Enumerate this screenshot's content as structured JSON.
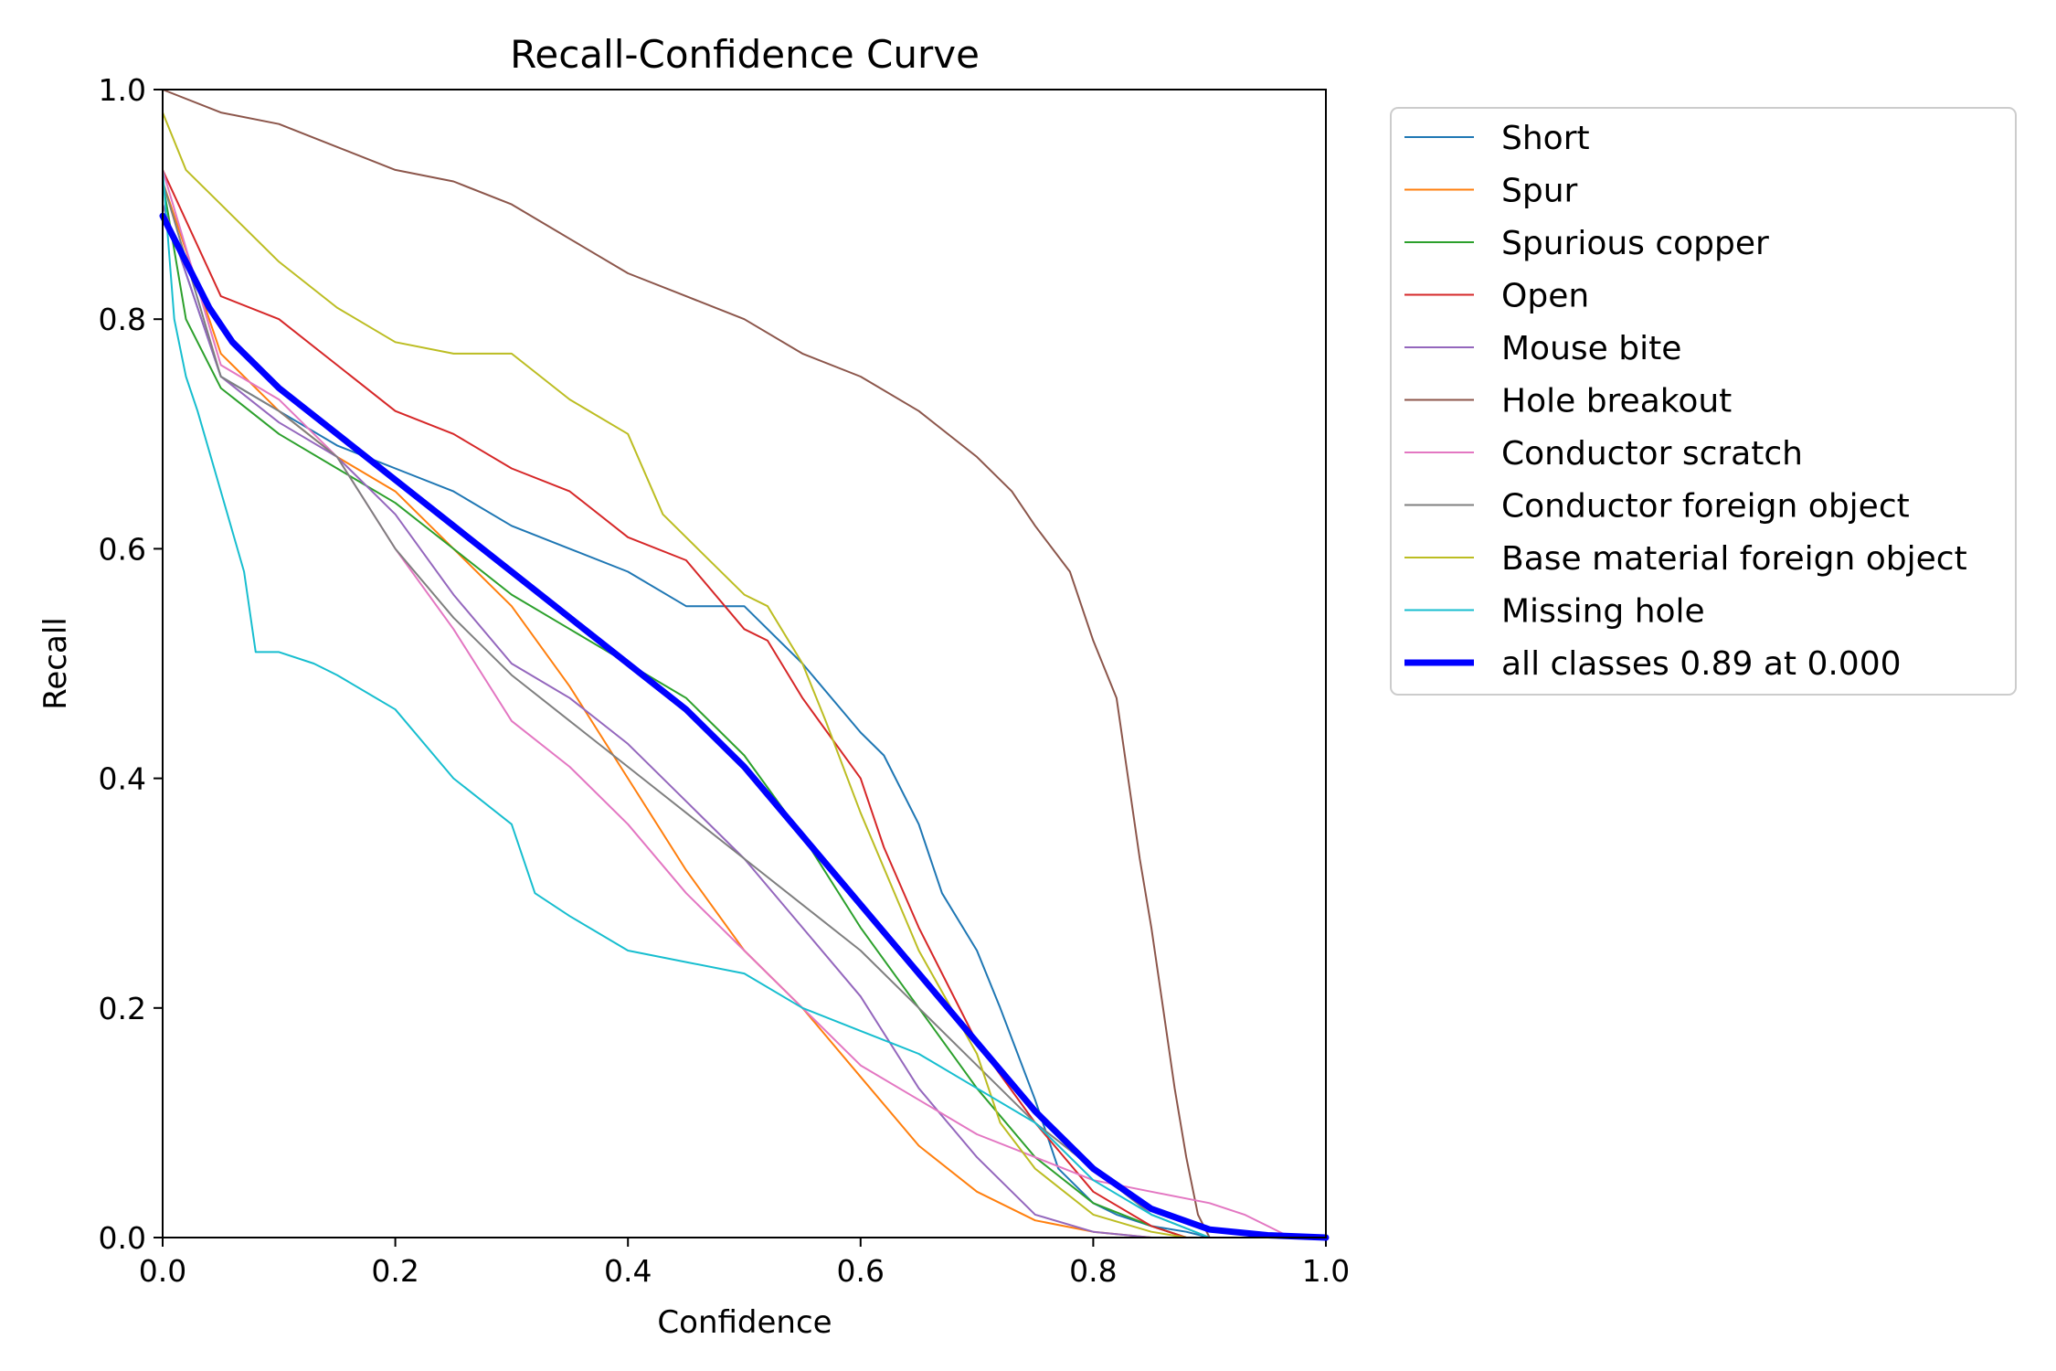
{
  "chart_data": {
    "type": "line",
    "title": "Recall-Confidence Curve",
    "xlabel": "Confidence",
    "ylabel": "Recall",
    "xlim": [
      0,
      1
    ],
    "ylim": [
      0,
      1
    ],
    "xticks": [
      "0.0",
      "0.2",
      "0.4",
      "0.6",
      "0.8",
      "1.0"
    ],
    "yticks": [
      "0.0",
      "0.2",
      "0.4",
      "0.6",
      "0.8",
      "1.0"
    ],
    "grid": false,
    "legend_position": "outside-top-right",
    "series": [
      {
        "name": "Short",
        "color": "#1f77b4",
        "width": 2,
        "x": [
          0,
          0.05,
          0.1,
          0.15,
          0.2,
          0.25,
          0.3,
          0.35,
          0.4,
          0.45,
          0.5,
          0.55,
          0.6,
          0.62,
          0.65,
          0.67,
          0.7,
          0.72,
          0.75,
          0.77,
          0.8,
          0.82,
          0.85,
          0.88,
          0.9
        ],
        "y": [
          0.9,
          0.75,
          0.72,
          0.69,
          0.67,
          0.65,
          0.62,
          0.6,
          0.58,
          0.55,
          0.55,
          0.5,
          0.44,
          0.42,
          0.36,
          0.3,
          0.25,
          0.2,
          0.12,
          0.06,
          0.03,
          0.02,
          0.01,
          0.005,
          0
        ]
      },
      {
        "name": "Spur",
        "color": "#ff7f0e",
        "width": 2,
        "x": [
          0,
          0.05,
          0.1,
          0.15,
          0.2,
          0.25,
          0.3,
          0.35,
          0.4,
          0.45,
          0.5,
          0.55,
          0.6,
          0.65,
          0.7,
          0.75,
          0.8,
          0.85
        ],
        "y": [
          0.92,
          0.77,
          0.72,
          0.68,
          0.65,
          0.6,
          0.55,
          0.48,
          0.4,
          0.32,
          0.25,
          0.2,
          0.14,
          0.08,
          0.04,
          0.015,
          0.005,
          0
        ]
      },
      {
        "name": "Spurious copper",
        "color": "#2ca02c",
        "width": 2,
        "x": [
          0,
          0.02,
          0.05,
          0.1,
          0.15,
          0.2,
          0.25,
          0.3,
          0.35,
          0.4,
          0.45,
          0.5,
          0.55,
          0.6,
          0.65,
          0.7,
          0.75,
          0.8,
          0.85,
          0.88
        ],
        "y": [
          0.92,
          0.8,
          0.74,
          0.7,
          0.67,
          0.64,
          0.6,
          0.56,
          0.53,
          0.5,
          0.47,
          0.42,
          0.35,
          0.27,
          0.2,
          0.13,
          0.07,
          0.03,
          0.01,
          0
        ]
      },
      {
        "name": "Open",
        "color": "#d62728",
        "width": 2,
        "x": [
          0,
          0.05,
          0.1,
          0.15,
          0.2,
          0.25,
          0.3,
          0.35,
          0.4,
          0.45,
          0.5,
          0.52,
          0.55,
          0.6,
          0.62,
          0.65,
          0.7,
          0.75,
          0.8,
          0.85,
          0.88
        ],
        "y": [
          0.93,
          0.82,
          0.8,
          0.76,
          0.72,
          0.7,
          0.67,
          0.65,
          0.61,
          0.59,
          0.53,
          0.52,
          0.47,
          0.4,
          0.34,
          0.27,
          0.17,
          0.1,
          0.04,
          0.01,
          0
        ]
      },
      {
        "name": "Mouse bite",
        "color": "#9467bd",
        "width": 2,
        "x": [
          0,
          0.05,
          0.1,
          0.15,
          0.2,
          0.25,
          0.3,
          0.35,
          0.4,
          0.45,
          0.5,
          0.55,
          0.6,
          0.65,
          0.7,
          0.75,
          0.8,
          0.85
        ],
        "y": [
          0.9,
          0.75,
          0.71,
          0.68,
          0.63,
          0.56,
          0.5,
          0.47,
          0.43,
          0.38,
          0.33,
          0.27,
          0.21,
          0.13,
          0.07,
          0.02,
          0.005,
          0
        ]
      },
      {
        "name": "Hole breakout",
        "color": "#8c564b",
        "width": 2,
        "x": [
          0,
          0.05,
          0.1,
          0.15,
          0.2,
          0.25,
          0.3,
          0.35,
          0.4,
          0.45,
          0.5,
          0.55,
          0.6,
          0.65,
          0.7,
          0.73,
          0.75,
          0.78,
          0.8,
          0.82,
          0.83,
          0.84,
          0.85,
          0.86,
          0.87,
          0.88,
          0.89,
          0.9
        ],
        "y": [
          1.0,
          0.98,
          0.97,
          0.95,
          0.93,
          0.92,
          0.9,
          0.87,
          0.84,
          0.82,
          0.8,
          0.77,
          0.75,
          0.72,
          0.68,
          0.65,
          0.62,
          0.58,
          0.52,
          0.47,
          0.4,
          0.33,
          0.27,
          0.2,
          0.13,
          0.07,
          0.02,
          0
        ]
      },
      {
        "name": "Conductor scratch",
        "color": "#e377c2",
        "width": 2,
        "x": [
          0,
          0.05,
          0.1,
          0.15,
          0.2,
          0.25,
          0.3,
          0.35,
          0.4,
          0.45,
          0.5,
          0.55,
          0.6,
          0.65,
          0.7,
          0.75,
          0.8,
          0.85,
          0.9,
          0.93,
          0.95,
          0.97
        ],
        "y": [
          0.93,
          0.76,
          0.73,
          0.68,
          0.6,
          0.53,
          0.45,
          0.41,
          0.36,
          0.3,
          0.25,
          0.2,
          0.15,
          0.12,
          0.09,
          0.07,
          0.05,
          0.04,
          0.03,
          0.02,
          0.01,
          0
        ]
      },
      {
        "name": "Conductor foreign object",
        "color": "#7f7f7f",
        "width": 2,
        "x": [
          0,
          0.05,
          0.1,
          0.15,
          0.2,
          0.25,
          0.3,
          0.35,
          0.4,
          0.45,
          0.5,
          0.55,
          0.6,
          0.65,
          0.7,
          0.75,
          0.8,
          0.85,
          0.9
        ],
        "y": [
          0.92,
          0.75,
          0.72,
          0.68,
          0.6,
          0.54,
          0.49,
          0.45,
          0.41,
          0.37,
          0.33,
          0.29,
          0.25,
          0.2,
          0.15,
          0.1,
          0.06,
          0.02,
          0
        ]
      },
      {
        "name": "Base material foreign object",
        "color": "#bcbd22",
        "width": 2,
        "x": [
          0,
          0.02,
          0.05,
          0.1,
          0.15,
          0.2,
          0.25,
          0.3,
          0.35,
          0.4,
          0.43,
          0.46,
          0.5,
          0.52,
          0.55,
          0.57,
          0.6,
          0.65,
          0.7,
          0.72,
          0.75,
          0.8,
          0.85,
          0.88
        ],
        "y": [
          0.98,
          0.93,
          0.9,
          0.85,
          0.81,
          0.78,
          0.77,
          0.77,
          0.73,
          0.7,
          0.63,
          0.6,
          0.56,
          0.55,
          0.5,
          0.45,
          0.37,
          0.25,
          0.16,
          0.1,
          0.06,
          0.02,
          0.005,
          0
        ]
      },
      {
        "name": "Missing hole",
        "color": "#17becf",
        "width": 2,
        "x": [
          0,
          0.01,
          0.02,
          0.03,
          0.05,
          0.07,
          0.08,
          0.1,
          0.13,
          0.15,
          0.2,
          0.25,
          0.3,
          0.32,
          0.35,
          0.4,
          0.45,
          0.5,
          0.55,
          0.6,
          0.65,
          0.7,
          0.75,
          0.8,
          0.85,
          0.9
        ],
        "y": [
          0.93,
          0.8,
          0.75,
          0.72,
          0.65,
          0.58,
          0.51,
          0.51,
          0.5,
          0.49,
          0.46,
          0.4,
          0.36,
          0.3,
          0.28,
          0.25,
          0.24,
          0.23,
          0.2,
          0.18,
          0.16,
          0.13,
          0.1,
          0.05,
          0.02,
          0
        ]
      },
      {
        "name": "all classes 0.89 at 0.000",
        "color": "#0000ff",
        "width": 7,
        "x": [
          0,
          0.02,
          0.04,
          0.06,
          0.08,
          0.1,
          0.15,
          0.2,
          0.25,
          0.3,
          0.35,
          0.4,
          0.45,
          0.5,
          0.55,
          0.6,
          0.65,
          0.7,
          0.75,
          0.8,
          0.85,
          0.9,
          0.95,
          1.0
        ],
        "y": [
          0.89,
          0.85,
          0.81,
          0.78,
          0.76,
          0.74,
          0.7,
          0.66,
          0.62,
          0.58,
          0.54,
          0.5,
          0.46,
          0.41,
          0.35,
          0.29,
          0.23,
          0.17,
          0.11,
          0.06,
          0.025,
          0.007,
          0.002,
          0
        ]
      }
    ]
  }
}
